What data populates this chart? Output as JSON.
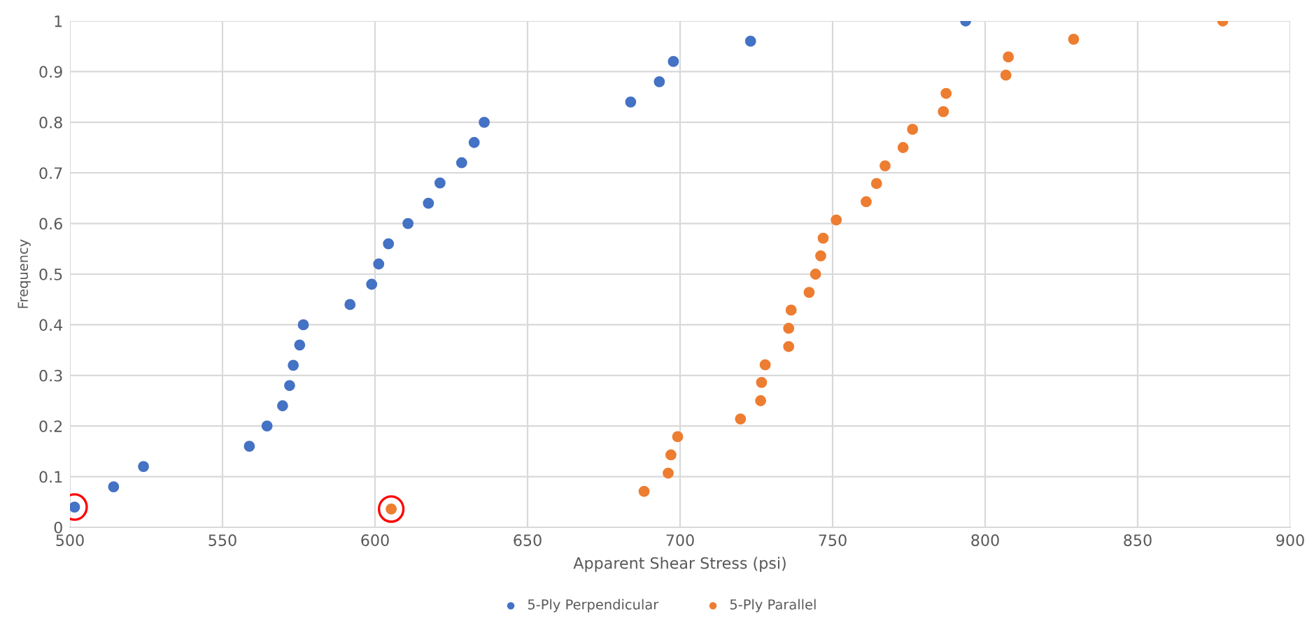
{
  "chart_data": {
    "type": "scatter",
    "xlabel": "Apparent Shear Stress (psi)",
    "ylabel": "Frequency",
    "xlim": [
      500,
      900
    ],
    "xticks": [
      500,
      550,
      600,
      650,
      700,
      750,
      800,
      850,
      900
    ],
    "ylim": [
      0,
      1
    ],
    "yticks": [
      0,
      0.1,
      0.2,
      0.3,
      0.4,
      0.5,
      0.6,
      0.7,
      0.8,
      0.9,
      1
    ],
    "grid": true,
    "legend": "bottom",
    "marker": "circle",
    "series": [
      {
        "name": "5-Ply Perpendicular",
        "color": "#4472c4",
        "x": [
          501.5,
          514.3,
          524.1,
          558.8,
          564.6,
          569.7,
          572,
          573.2,
          575.3,
          576.5,
          591.8,
          598.9,
          601.2,
          604.4,
          610.8,
          617.5,
          621.3,
          628.4,
          632.5,
          635.8,
          683.8,
          693.2,
          697.8,
          723.1,
          793.6
        ],
        "values": [
          0.04,
          0.08,
          0.12,
          0.16,
          0.2,
          0.24,
          0.28,
          0.32,
          0.36,
          0.4,
          0.44,
          0.48,
          0.52,
          0.56,
          0.6,
          0.64,
          0.68,
          0.72,
          0.76,
          0.8,
          0.84,
          0.88,
          0.92,
          0.96,
          1.0
        ]
      },
      {
        "name": "5-Ply Parallel",
        "color": "#ed7d31",
        "x": [
          605.3,
          688.2,
          696.1,
          697,
          699.2,
          719.8,
          726.4,
          726.7,
          727.9,
          735.6,
          735.6,
          736.4,
          742.3,
          744.4,
          746.1,
          746.9,
          751.2,
          761,
          764.4,
          767.2,
          773.1,
          776.2,
          786.3,
          787.2,
          806.8,
          807.6,
          829,
          877.9
        ],
        "values": [
          0.036,
          0.071,
          0.107,
          0.143,
          0.179,
          0.214,
          0.25,
          0.286,
          0.321,
          0.357,
          0.393,
          0.429,
          0.464,
          0.5,
          0.536,
          0.571,
          0.607,
          0.643,
          0.679,
          0.714,
          0.75,
          0.786,
          0.821,
          0.857,
          0.893,
          0.929,
          0.964,
          1.0
        ]
      }
    ]
  }
}
